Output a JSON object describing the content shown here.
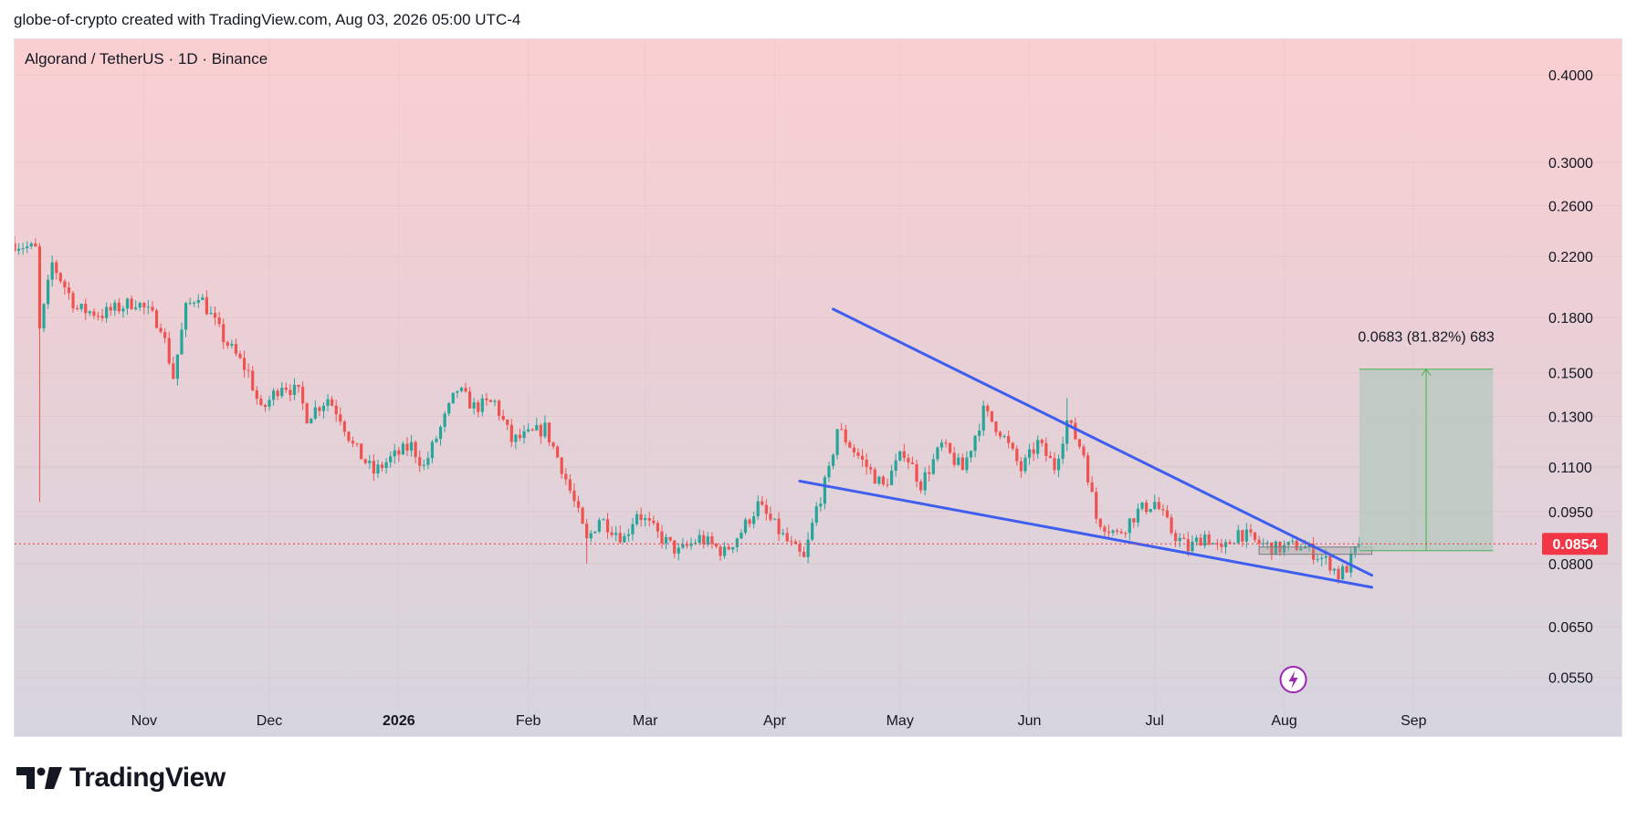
{
  "header": {
    "credit": "globe-of-crypto created with TradingView.com, Aug 03, 2026 05:00 UTC-4"
  },
  "symbol_title": "Algorand / TetherUS · 1D · Binance",
  "footer": {
    "brand": "TradingView",
    "logo_icon": "tradingview-logo-icon"
  },
  "colors": {
    "up": "#26a69a",
    "down": "#ef5350",
    "trendline": "#3e5ef0",
    "current_price_bg": "#f23645",
    "measure_fill": "#b4c8bc",
    "measure_line": "#4caf50",
    "flash_icon": "#9c27b0"
  },
  "chart_data": {
    "type": "candlestick",
    "price_axis": {
      "scale": "log",
      "ticks": [
        "0.4000",
        "0.3000",
        "0.2600",
        "0.2200",
        "0.1800",
        "0.1500",
        "0.1300",
        "0.1100",
        "0.0950",
        "0.0800",
        "0.0650",
        "0.0550"
      ],
      "range": [
        0.048,
        0.45
      ]
    },
    "time_axis": {
      "range": [
        "2025-10-01",
        "2026-09-30"
      ],
      "labels": [
        {
          "label": "Nov",
          "date": "2025-11-01",
          "bold": false
        },
        {
          "label": "Dec",
          "date": "2025-12-01",
          "bold": false
        },
        {
          "label": "2026",
          "date": "2026-01-01",
          "bold": true
        },
        {
          "label": "Feb",
          "date": "2026-02-01",
          "bold": false
        },
        {
          "label": "Mar",
          "date": "2026-03-01",
          "bold": false
        },
        {
          "label": "Apr",
          "date": "2026-04-01",
          "bold": false
        },
        {
          "label": "May",
          "date": "2026-05-01",
          "bold": false
        },
        {
          "label": "Jun",
          "date": "2026-06-01",
          "bold": false
        },
        {
          "label": "Jul",
          "date": "2026-07-01",
          "bold": false
        },
        {
          "label": "Aug",
          "date": "2026-08-01",
          "bold": false
        },
        {
          "label": "Sep",
          "date": "2026-09-01",
          "bold": false
        }
      ]
    },
    "price_path": [
      [
        "2025-10-01",
        0.23
      ],
      [
        "2025-10-06",
        0.225
      ],
      [
        "2025-10-07",
        0.172
      ],
      [
        "2025-10-10",
        0.215
      ],
      [
        "2025-10-16",
        0.185
      ],
      [
        "2025-10-22",
        0.182
      ],
      [
        "2025-10-30",
        0.19
      ],
      [
        "2025-11-05",
        0.176
      ],
      [
        "2025-11-08",
        0.148
      ],
      [
        "2025-11-11",
        0.185
      ],
      [
        "2025-11-14",
        0.195
      ],
      [
        "2025-11-20",
        0.168
      ],
      [
        "2025-11-26",
        0.15
      ],
      [
        "2025-11-29",
        0.132
      ],
      [
        "2025-12-04",
        0.145
      ],
      [
        "2025-12-08",
        0.14
      ],
      [
        "2025-12-10",
        0.13
      ],
      [
        "2025-12-15",
        0.138
      ],
      [
        "2025-12-18",
        0.13
      ],
      [
        "2025-12-21",
        0.118
      ],
      [
        "2025-12-26",
        0.108
      ],
      [
        "2025-12-30",
        0.113
      ],
      [
        "2026-01-04",
        0.118
      ],
      [
        "2026-01-07",
        0.11
      ],
      [
        "2026-01-11",
        0.125
      ],
      [
        "2026-01-15",
        0.142
      ],
      [
        "2026-01-19",
        0.134
      ],
      [
        "2026-01-24",
        0.136
      ],
      [
        "2026-01-28",
        0.12
      ],
      [
        "2026-02-01",
        0.122
      ],
      [
        "2026-02-05",
        0.125
      ],
      [
        "2026-02-09",
        0.11
      ],
      [
        "2026-02-13",
        0.094
      ],
      [
        "2026-02-15",
        0.086
      ],
      [
        "2026-02-18",
        0.093
      ],
      [
        "2026-02-24",
        0.087
      ],
      [
        "2026-02-27",
        0.095
      ],
      [
        "2026-03-04",
        0.088
      ],
      [
        "2026-03-09",
        0.083
      ],
      [
        "2026-03-14",
        0.087
      ],
      [
        "2026-03-20",
        0.083
      ],
      [
        "2026-03-24",
        0.089
      ],
      [
        "2026-03-28",
        0.097
      ],
      [
        "2026-04-04",
        0.086
      ],
      [
        "2026-04-08",
        0.081
      ],
      [
        "2026-04-11",
        0.096
      ],
      [
        "2026-04-14",
        0.108
      ],
      [
        "2026-04-16",
        0.125
      ],
      [
        "2026-04-22",
        0.112
      ],
      [
        "2026-04-27",
        0.103
      ],
      [
        "2026-05-02",
        0.116
      ],
      [
        "2026-05-06",
        0.104
      ],
      [
        "2026-05-11",
        0.118
      ],
      [
        "2026-05-16",
        0.109
      ],
      [
        "2026-05-21",
        0.132
      ],
      [
        "2026-05-25",
        0.124
      ],
      [
        "2026-05-30",
        0.109
      ],
      [
        "2026-06-03",
        0.119
      ],
      [
        "2026-06-07",
        0.11
      ],
      [
        "2026-06-10",
        0.128
      ],
      [
        "2026-06-14",
        0.115
      ],
      [
        "2026-06-17",
        0.093
      ],
      [
        "2026-06-22",
        0.088
      ],
      [
        "2026-06-27",
        0.095
      ],
      [
        "2026-07-01",
        0.098
      ],
      [
        "2026-07-05",
        0.089
      ],
      [
        "2026-07-09",
        0.084
      ],
      [
        "2026-07-13",
        0.088
      ],
      [
        "2026-07-17",
        0.083
      ],
      [
        "2026-07-21",
        0.089
      ],
      [
        "2026-07-25",
        0.086
      ],
      [
        "2026-07-30",
        0.084
      ],
      [
        "2026-08-05",
        0.085
      ],
      [
        "2026-08-08",
        0.083
      ],
      [
        "2026-08-12",
        0.08
      ],
      [
        "2026-08-14",
        0.077
      ],
      [
        "2026-08-16",
        0.079
      ],
      [
        "2026-08-19",
        0.0855
      ]
    ],
    "last_price": "0.0854",
    "trendlines": [
      {
        "name": "upper-trendline",
        "from": [
          "2026-04-15",
          0.185
        ],
        "to": [
          "2026-08-22",
          0.077
        ]
      },
      {
        "name": "lower-trendline",
        "from": [
          "2026-04-07",
          0.105
        ],
        "to": [
          "2026-08-22",
          0.074
        ]
      }
    ],
    "consolidation_box": {
      "from": [
        "2026-07-26",
        0.0825
      ],
      "to": [
        "2026-08-22",
        0.0845
      ]
    },
    "measure": {
      "from": [
        "2026-08-19",
        0.0835
      ],
      "to": [
        "2026-09-20",
        0.1518
      ],
      "label": "0.0683 (81.82%) 683"
    }
  }
}
